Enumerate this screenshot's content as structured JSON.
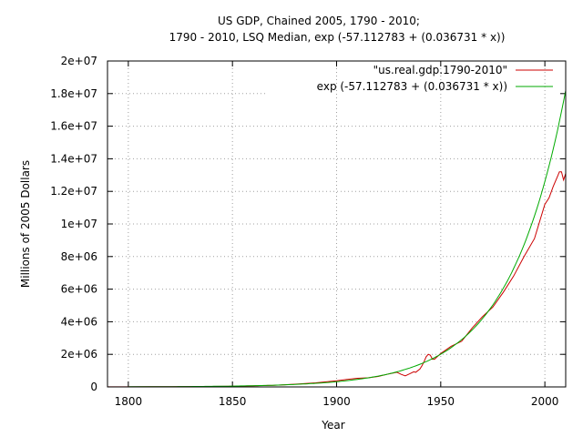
{
  "chart_data": {
    "type": "line",
    "title": "US GDP, Chained 2005, 1790 - 2010;",
    "subtitle": "1790 - 2010, LSQ Median, exp (-57.112783 + (0.036731 * x))",
    "xlabel": "Year",
    "ylabel": "Millions of 2005 Dollars",
    "xlim": [
      1790,
      2010
    ],
    "ylim": [
      0,
      20000000
    ],
    "x_ticks": [
      1800,
      1850,
      1900,
      1950,
      2000
    ],
    "x_tick_labels": [
      "1800",
      "1850",
      "1900",
      "1950",
      "2000"
    ],
    "y_ticks": [
      0,
      2000000,
      4000000,
      6000000,
      8000000,
      10000000,
      12000000,
      14000000,
      16000000,
      18000000,
      20000000
    ],
    "y_tick_labels": [
      "0",
      "2e+06",
      "4e+06",
      "6e+06",
      "8e+06",
      "1e+07",
      "1.2e+07",
      "1.4e+07",
      "1.6e+07",
      "1.8e+07",
      "2e+07"
    ],
    "grid": true,
    "legend_position": "top-right",
    "series": [
      {
        "name": "\"us.real.gdp.1790-2010\"",
        "color": "#cc0000",
        "x": [
          1790,
          1800,
          1810,
          1820,
          1830,
          1840,
          1850,
          1860,
          1870,
          1880,
          1890,
          1900,
          1905,
          1910,
          1915,
          1920,
          1925,
          1929,
          1931,
          1933,
          1935,
          1937,
          1938,
          1940,
          1941,
          1942,
          1943,
          1944,
          1945,
          1946,
          1947,
          1950,
          1955,
          1960,
          1965,
          1970,
          1975,
          1980,
          1985,
          1990,
          1995,
          2000,
          2002,
          2004,
          2006,
          2007,
          2008,
          2009,
          2010
        ],
        "values": [
          3000,
          5000,
          9000,
          13000,
          20000,
          30000,
          45000,
          70000,
          100000,
          170000,
          250000,
          380000,
          460000,
          530000,
          560000,
          640000,
          800000,
          900000,
          770000,
          680000,
          800000,
          930000,
          900000,
          1100000,
          1300000,
          1550000,
          1850000,
          2000000,
          1950000,
          1700000,
          1700000,
          2050000,
          2500000,
          2800000,
          3600000,
          4300000,
          4900000,
          5800000,
          6800000,
          8000000,
          9100000,
          11200000,
          11600000,
          12300000,
          12900000,
          13200000,
          13200000,
          12700000,
          13100000
        ]
      },
      {
        "name": "exp (-57.112783 + (0.036731 * x))",
        "color": "#00aa00",
        "function": {
          "a": -57.112783,
          "b": 0.036731,
          "x_from": 1800,
          "x_to": 2010
        }
      }
    ]
  }
}
